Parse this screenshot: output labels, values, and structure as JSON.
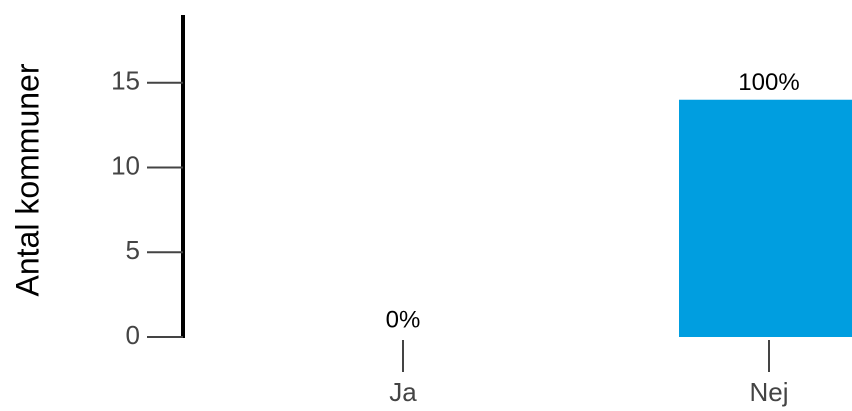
{
  "chart_data": {
    "type": "bar",
    "y_label": "Antal kommuner",
    "categories": [
      "Ja",
      "Nej"
    ],
    "values": [
      0,
      14
    ],
    "value_labels": [
      "0%",
      "100%"
    ],
    "color": "#009ee0",
    "ylim": [
      0,
      19
    ],
    "yticks": [
      0,
      5,
      10,
      15
    ],
    "grid": false
  }
}
